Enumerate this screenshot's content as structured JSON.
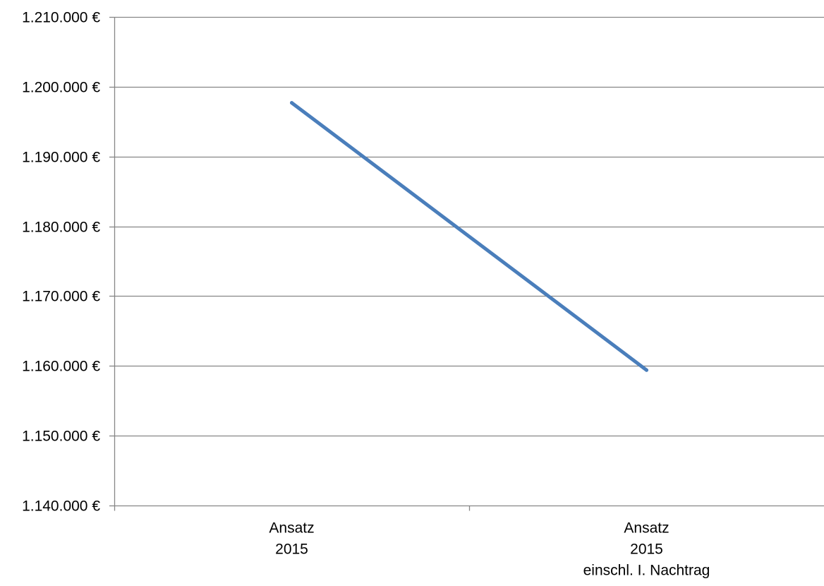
{
  "chart_data": {
    "type": "line",
    "categories": [
      [
        "Ansatz",
        "2015"
      ],
      [
        "Ansatz",
        "2015",
        "einschl. I. Nachtrag"
      ]
    ],
    "series": [
      {
        "values": [
          1197700,
          1159400
        ]
      }
    ],
    "ylim": [
      1140000,
      1210000
    ],
    "yticks": [
      1140000,
      1150000,
      1160000,
      1170000,
      1180000,
      1190000,
      1200000,
      1210000
    ],
    "ytick_labels": [
      "1.140.000 €",
      "1.150.000 €",
      "1.160.000 €",
      "1.170.000 €",
      "1.180.000 €",
      "1.190.000 €",
      "1.200.000 €",
      "1.210.000 €"
    ],
    "grid": true,
    "legend": "none",
    "colors": {
      "series": "#4a7ebb",
      "grid": "#868686",
      "axis": "#868686"
    }
  }
}
